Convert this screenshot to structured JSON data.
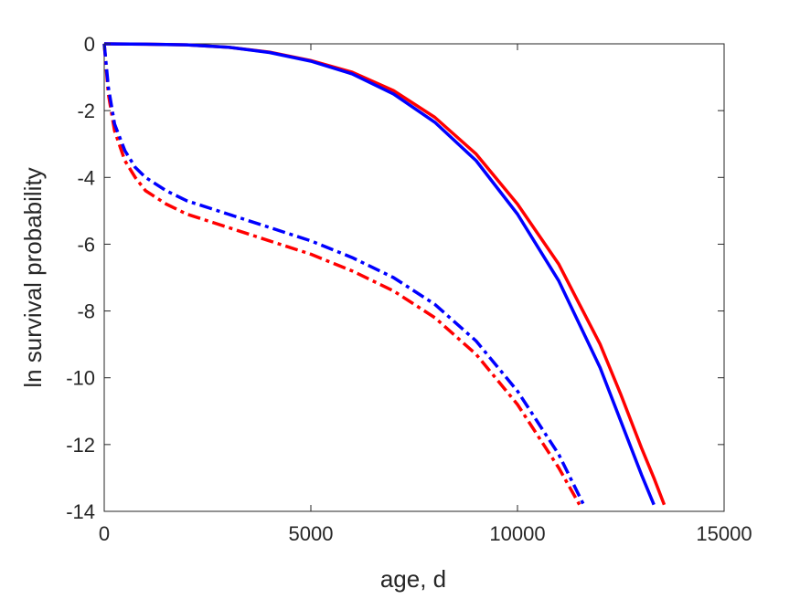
{
  "chart_data": {
    "type": "line",
    "title": "",
    "xlabel": "age, d",
    "ylabel": "ln survival probability",
    "xlim": [
      0,
      15000
    ],
    "ylim": [
      -14,
      0
    ],
    "xticks": [
      0,
      5000,
      10000,
      15000
    ],
    "xtick_labels": [
      "0",
      "5000",
      "10000",
      "15000"
    ],
    "yticks": [
      0,
      -2,
      -4,
      -6,
      -8,
      -10,
      -12,
      -14
    ],
    "ytick_labels": [
      "0",
      "-2",
      "-4",
      "-6",
      "-8",
      "-10",
      "-12",
      "-14"
    ],
    "grid": false,
    "legend": "none",
    "series": [
      {
        "color": "#ff0000",
        "style": "solid",
        "x": [
          0,
          1000,
          2000,
          3000,
          4000,
          5000,
          6000,
          7000,
          8000,
          9000,
          10000,
          11000,
          12000,
          12500,
          13000,
          13300,
          13550
        ],
        "y": [
          0,
          -0.01,
          -0.03,
          -0.1,
          -0.25,
          -0.5,
          -0.85,
          -1.4,
          -2.2,
          -3.3,
          -4.8,
          -6.6,
          -9.0,
          -10.5,
          -12.1,
          -13.0,
          -13.8
        ]
      },
      {
        "color": "#0000ff",
        "style": "solid",
        "x": [
          0,
          1000,
          2000,
          3000,
          4000,
          5000,
          6000,
          7000,
          8000,
          9000,
          10000,
          11000,
          12000,
          12500,
          13000,
          13300
        ],
        "y": [
          0,
          -0.01,
          -0.03,
          -0.1,
          -0.26,
          -0.52,
          -0.9,
          -1.5,
          -2.35,
          -3.5,
          -5.1,
          -7.1,
          -9.7,
          -11.3,
          -12.9,
          -13.8
        ]
      },
      {
        "color": "#ff0000",
        "style": "dashdot",
        "x": [
          0,
          100,
          250,
          500,
          750,
          1000,
          1500,
          2000,
          3000,
          4000,
          5000,
          6000,
          7000,
          8000,
          9000,
          10000,
          11000,
          11500
        ],
        "y": [
          0,
          -1.5,
          -2.6,
          -3.5,
          -4.0,
          -4.4,
          -4.8,
          -5.1,
          -5.5,
          -5.9,
          -6.3,
          -6.8,
          -7.4,
          -8.2,
          -9.3,
          -10.8,
          -12.7,
          -13.8
        ]
      },
      {
        "color": "#0000ff",
        "style": "dashdot",
        "x": [
          0,
          100,
          250,
          500,
          750,
          1000,
          1500,
          2000,
          3000,
          4000,
          5000,
          6000,
          7000,
          8000,
          9000,
          10000,
          11000,
          11600
        ],
        "y": [
          0,
          -1.3,
          -2.4,
          -3.2,
          -3.7,
          -4.0,
          -4.4,
          -4.7,
          -5.1,
          -5.5,
          -5.9,
          -6.4,
          -7.0,
          -7.8,
          -8.9,
          -10.4,
          -12.3,
          -13.8
        ]
      }
    ]
  }
}
